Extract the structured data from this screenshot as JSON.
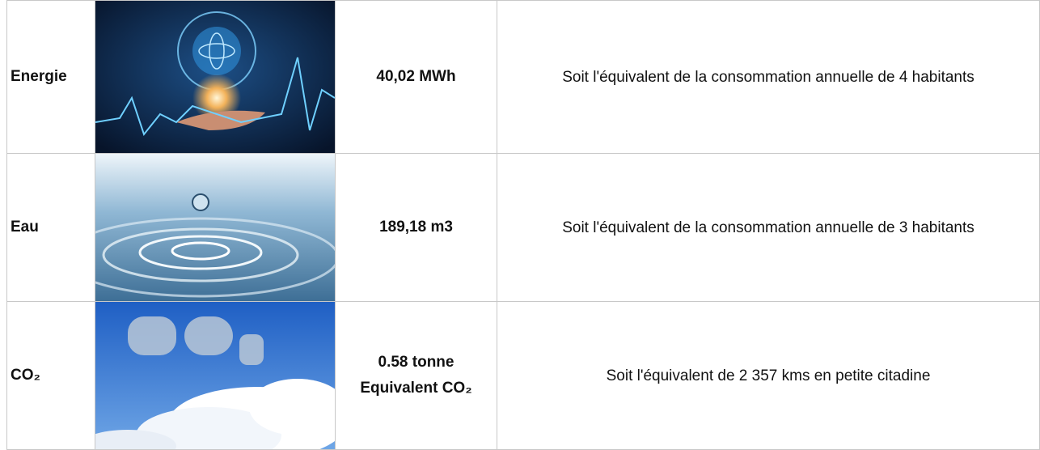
{
  "table": {
    "rows": [
      [
        "Energie",
        "40,02 MWh",
        "Soit l'équivalent de la consommation annuelle de 4 habitants"
      ],
      [
        "Eau",
        "189,18 m3",
        "Soit l'équivalent de la consommation annuelle de 3 habitants"
      ],
      [
        "CO₂",
        "0.58 tonne Equivalent CO₂",
        "Soit l'équivalent de 2 357 kms en petite citadine"
      ]
    ]
  }
}
